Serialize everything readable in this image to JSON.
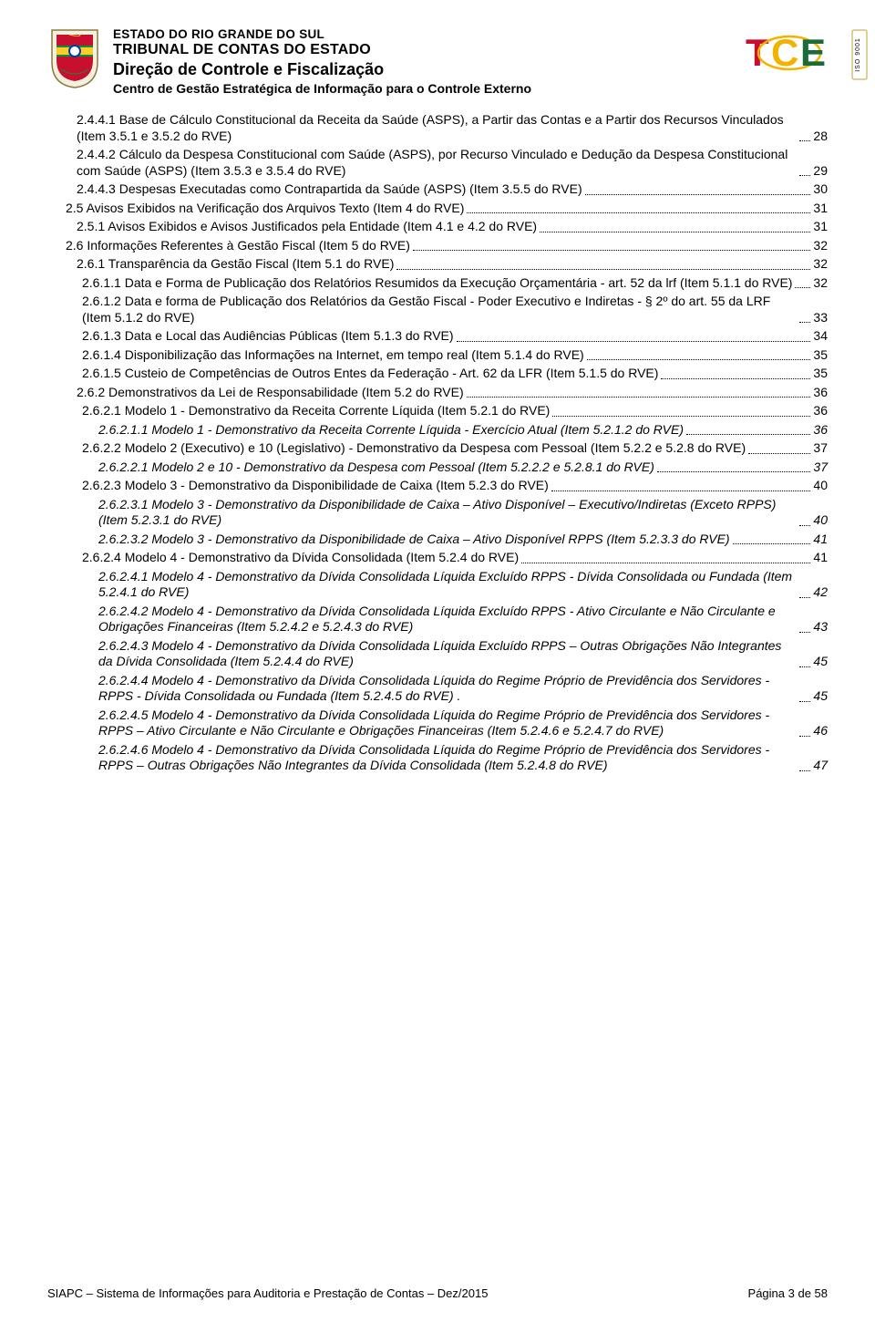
{
  "header": {
    "state": "ESTADO DO RIO GRANDE DO SUL",
    "tribunal": "TRIBUNAL DE CONTAS DO ESTADO",
    "direcao": "Direção de Controle e Fiscalização",
    "centro": "Centro de Gestão Estratégica de Informação para o Controle Externo",
    "logo_text": "TCE",
    "iso_text": "ISO 9001"
  },
  "crest_colors": {
    "red": "#c8102e",
    "green": "#009739",
    "yellow": "#ffcc29",
    "blue": "#003da5"
  },
  "logo_colors": {
    "t": "#c8102e",
    "c": "#f2b200",
    "e": "#1a6a3a",
    "iso_border": "#c0a030"
  },
  "toc": [
    {
      "lvl": "a",
      "it": false,
      "label": "2.4.4.1 Base de Cálculo Constitucional da Receita da Saúde (ASPS), a Partir das Contas e a Partir dos Recursos Vinculados (Item 3.5.1 e 3.5.2 do RVE)",
      "pg": "28"
    },
    {
      "lvl": "a",
      "it": false,
      "label": "2.4.4.2 Cálculo da Despesa Constitucional com Saúde (ASPS), por Recurso Vinculado e Dedução da Despesa Constitucional com Saúde (ASPS) (Item 3.5.3 e 3.5.4 do RVE)",
      "pg": "29"
    },
    {
      "lvl": "a",
      "it": false,
      "label": "2.4.4.3 Despesas Executadas como Contrapartida da Saúde (ASPS) (Item 3.5.5 do RVE)",
      "pg": "30"
    },
    {
      "lvl": "b",
      "it": false,
      "label": "2.5     Avisos Exibidos na Verificação dos Arquivos Texto (Item 4 do RVE)",
      "pg": "31"
    },
    {
      "lvl": "a",
      "it": false,
      "label": "2.5.1 Avisos Exibidos e Avisos Justificados pela Entidade (Item 4.1 e 4.2 do RVE)",
      "pg": "31"
    },
    {
      "lvl": "b",
      "it": false,
      "label": "2.6     Informações Referentes à Gestão Fiscal (Item 5 do RVE)",
      "pg": "32"
    },
    {
      "lvl": "a",
      "it": false,
      "label": "2.6.1 Transparência da Gestão Fiscal (Item 5.1 do RVE)",
      "pg": "32"
    },
    {
      "lvl": "c",
      "it": false,
      "label": "2.6.1.1 Data e Forma de Publicação dos Relatórios Resumidos da Execução Orçamentária - art. 52 da lrf (Item 5.1.1 do RVE)",
      "pg": "32"
    },
    {
      "lvl": "c",
      "it": false,
      "label": "2.6.1.2 Data e forma de Publicação dos Relatórios da Gestão Fiscal - Poder Executivo e Indiretas - § 2º do art. 55 da LRF (Item 5.1.2 do RVE)",
      "pg": "33"
    },
    {
      "lvl": "c",
      "it": false,
      "label": "2.6.1.3 Data e Local das Audiências Públicas (Item 5.1.3 do RVE)",
      "pg": "34"
    },
    {
      "lvl": "c",
      "it": false,
      "label": "2.6.1.4 Disponibilização das Informações na Internet, em tempo real (Item 5.1.4 do RVE)",
      "pg": "35"
    },
    {
      "lvl": "c",
      "it": false,
      "label": "2.6.1.5 Custeio de Competências de Outros Entes da Federação - Art. 62 da LFR (Item 5.1.5 do RVE)",
      "pg": "35"
    },
    {
      "lvl": "a",
      "it": false,
      "label": "2.6.2 Demonstrativos da Lei de Responsabilidade (Item 5.2 do RVE)",
      "pg": "36"
    },
    {
      "lvl": "c",
      "it": false,
      "label": "2.6.2.1 Modelo 1 - Demonstrativo da Receita Corrente Líquida (Item 5.2.1 do RVE)",
      "pg": "36"
    },
    {
      "lvl": "d",
      "it": true,
      "label": "2.6.2.1.1 Modelo 1 - Demonstrativo da Receita Corrente Líquida - Exercício Atual (Item 5.2.1.2 do RVE)",
      "pg": "36"
    },
    {
      "lvl": "c",
      "it": false,
      "label": "2.6.2.2 Modelo 2 (Executivo) e 10 (Legislativo) - Demonstrativo da Despesa com Pessoal (Item 5.2.2 e 5.2.8 do RVE)",
      "pg": "37"
    },
    {
      "lvl": "d",
      "it": true,
      "label": "2.6.2.2.1 Modelo 2 e 10 - Demonstrativo da Despesa com Pessoal  (Item 5.2.2.2 e 5.2.8.1 do RVE)",
      "pg": "37"
    },
    {
      "lvl": "c",
      "it": false,
      "label": "2.6.2.3 Modelo 3 - Demonstrativo da Disponibilidade de Caixa (Item 5.2.3 do RVE)",
      "pg": "40"
    },
    {
      "lvl": "d",
      "it": true,
      "label": "2.6.2.3.1 Modelo 3 - Demonstrativo da Disponibilidade de Caixa – Ativo Disponível – Executivo/Indiretas (Exceto RPPS) (Item 5.2.3.1 do RVE)",
      "pg": "40"
    },
    {
      "lvl": "d",
      "it": true,
      "label": "2.6.2.3.2 Modelo 3 - Demonstrativo da Disponibilidade de Caixa – Ativo Disponível RPPS (Item 5.2.3.3 do RVE)",
      "pg": "41"
    },
    {
      "lvl": "c",
      "it": false,
      "label": "2.6.2.4 Modelo 4 - Demonstrativo da Dívida Consolidada (Item 5.2.4 do RVE)",
      "pg": "41"
    },
    {
      "lvl": "d",
      "it": true,
      "label": "2.6.2.4.1 Modelo 4 - Demonstrativo da Dívida Consolidada Líquida Excluído RPPS - Dívida Consolidada ou Fundada (Item 5.2.4.1 do RVE)",
      "pg": "42"
    },
    {
      "lvl": "d",
      "it": true,
      "label": "2.6.2.4.2 Modelo 4 - Demonstrativo da Dívida Consolidada Líquida Excluído RPPS - Ativo Circulante e Não Circulante e Obrigações Financeiras (Item 5.2.4.2 e 5.2.4.3 do RVE)",
      "pg": "43"
    },
    {
      "lvl": "d",
      "it": true,
      "label": "2.6.2.4.3 Modelo 4 - Demonstrativo da Dívida Consolidada Líquida Excluído RPPS – Outras Obrigações Não Integrantes da Dívida Consolidada (Item 5.2.4.4 do RVE)",
      "pg": "45"
    },
    {
      "lvl": "d",
      "it": true,
      "label": "2.6.2.4.4 Modelo 4 - Demonstrativo da Dívida Consolidada Líquida do Regime Próprio de Previdência dos Servidores - RPPS - Dívida Consolidada ou Fundada (Item 5.2.4.5 do RVE) .",
      "pg": "45"
    },
    {
      "lvl": "d",
      "it": true,
      "label": "2.6.2.4.5 Modelo 4 - Demonstrativo da Dívida Consolidada Líquida do Regime Próprio de Previdência dos Servidores - RPPS – Ativo Circulante e Não Circulante e Obrigações Financeiras (Item 5.2.4.6 e 5.2.4.7 do RVE)",
      "pg": "46"
    },
    {
      "lvl": "d",
      "it": true,
      "label": "2.6.2.4.6 Modelo 4 - Demonstrativo da Dívida Consolidada Líquida do Regime Próprio de Previdência dos Servidores - RPPS – Outras Obrigações Não Integrantes da Dívida Consolidada (Item 5.2.4.8 do RVE)",
      "pg": "47"
    }
  ],
  "footer": {
    "left": "SIAPC – Sistema de Informações para Auditoria e Prestação de Contas – Dez/2015",
    "right": "Página 3 de 58"
  }
}
